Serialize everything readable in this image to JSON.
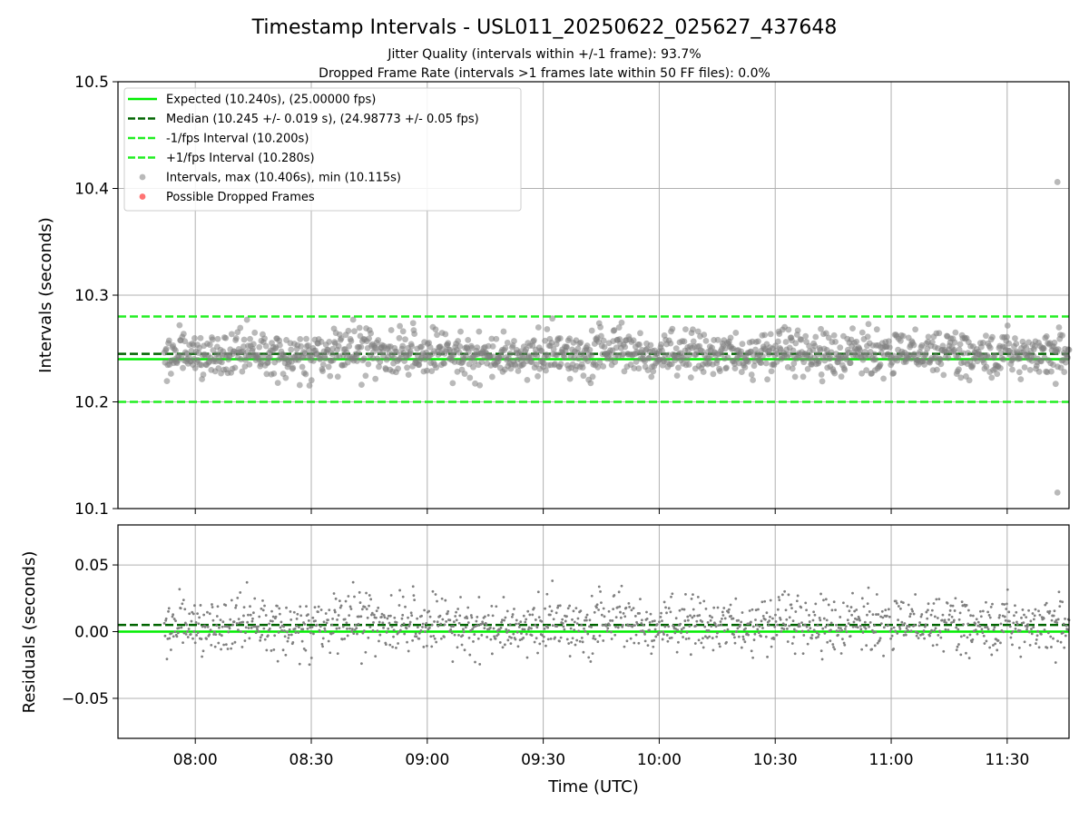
{
  "title": "Timestamp Intervals - USL011_20250622_025627_437648",
  "subtitle_lines": [
    "Jitter Quality (intervals within +/-1 frame): 93.7%",
    "Dropped Frame Rate (intervals >1 frames late within 50 FF files): 0.0%"
  ],
  "colors": {
    "expected": "#00ee00",
    "median": "#006400",
    "bounds": "#22ee22",
    "points": "#808080",
    "dropped": "#ff5050",
    "grid": "#b0b0b0"
  },
  "chart_data": [
    {
      "type": "scatter",
      "panel": "top",
      "xlabel": "",
      "ylabel": "Intervals (seconds)",
      "xlim": [
        "07:40",
        "11:46"
      ],
      "ylim": [
        10.1,
        10.5
      ],
      "x_ticks": [
        "08:00",
        "08:30",
        "09:00",
        "09:30",
        "10:00",
        "10:30",
        "11:00",
        "11:30"
      ],
      "y_ticks": [
        "10.1",
        "10.2",
        "10.3",
        "10.4",
        "10.5"
      ],
      "grid": true,
      "legend_position": "top-left",
      "reference_lines": [
        {
          "name": "Expected (10.240s), (25.00000 fps)",
          "y": 10.24,
          "style": "solid",
          "color_key": "expected"
        },
        {
          "name": "Median (10.245 +/- 0.019 s), (24.98773 +/- 0.05 fps)",
          "y": 10.245,
          "style": "dashed",
          "color_key": "median"
        },
        {
          "name": "-1/fps Interval (10.200s)",
          "y": 10.2,
          "style": "dashed",
          "color_key": "bounds"
        },
        {
          "name": "+1/fps Interval (10.280s)",
          "y": 10.28,
          "style": "dashed",
          "color_key": "bounds"
        }
      ],
      "series": [
        {
          "name": "Intervals, max (10.406s), min (10.115s)",
          "x_range": [
            "07:52",
            "11:46"
          ],
          "sampling_interval_s": 10.24,
          "y_center": 10.245,
          "y_spread": 0.019,
          "extremes": [
            {
              "x": "11:43",
              "y": 10.406
            },
            {
              "x": "11:43",
              "y": 10.115
            }
          ]
        },
        {
          "name": "Possible Dropped Frames",
          "values": []
        }
      ]
    },
    {
      "type": "scatter",
      "panel": "bottom",
      "xlabel": "Time (UTC)",
      "ylabel": "Residuals (seconds)",
      "xlim": [
        "07:40",
        "11:46"
      ],
      "ylim": [
        -0.08,
        0.08
      ],
      "x_ticks": [
        "08:00",
        "08:30",
        "09:00",
        "09:30",
        "10:00",
        "10:30",
        "11:00",
        "11:30"
      ],
      "y_ticks": [
        "−0.05",
        "0.00",
        "0.05"
      ],
      "y_tick_values": [
        -0.05,
        0.0,
        0.05
      ],
      "grid": true,
      "reference_lines": [
        {
          "y": 0.0,
          "style": "solid",
          "color_key": "expected"
        },
        {
          "y": 0.005,
          "style": "dashed",
          "color_key": "median"
        }
      ],
      "series": [
        {
          "name": "",
          "derived_from": "Intervals minus expected 10.240 s"
        }
      ]
    }
  ]
}
